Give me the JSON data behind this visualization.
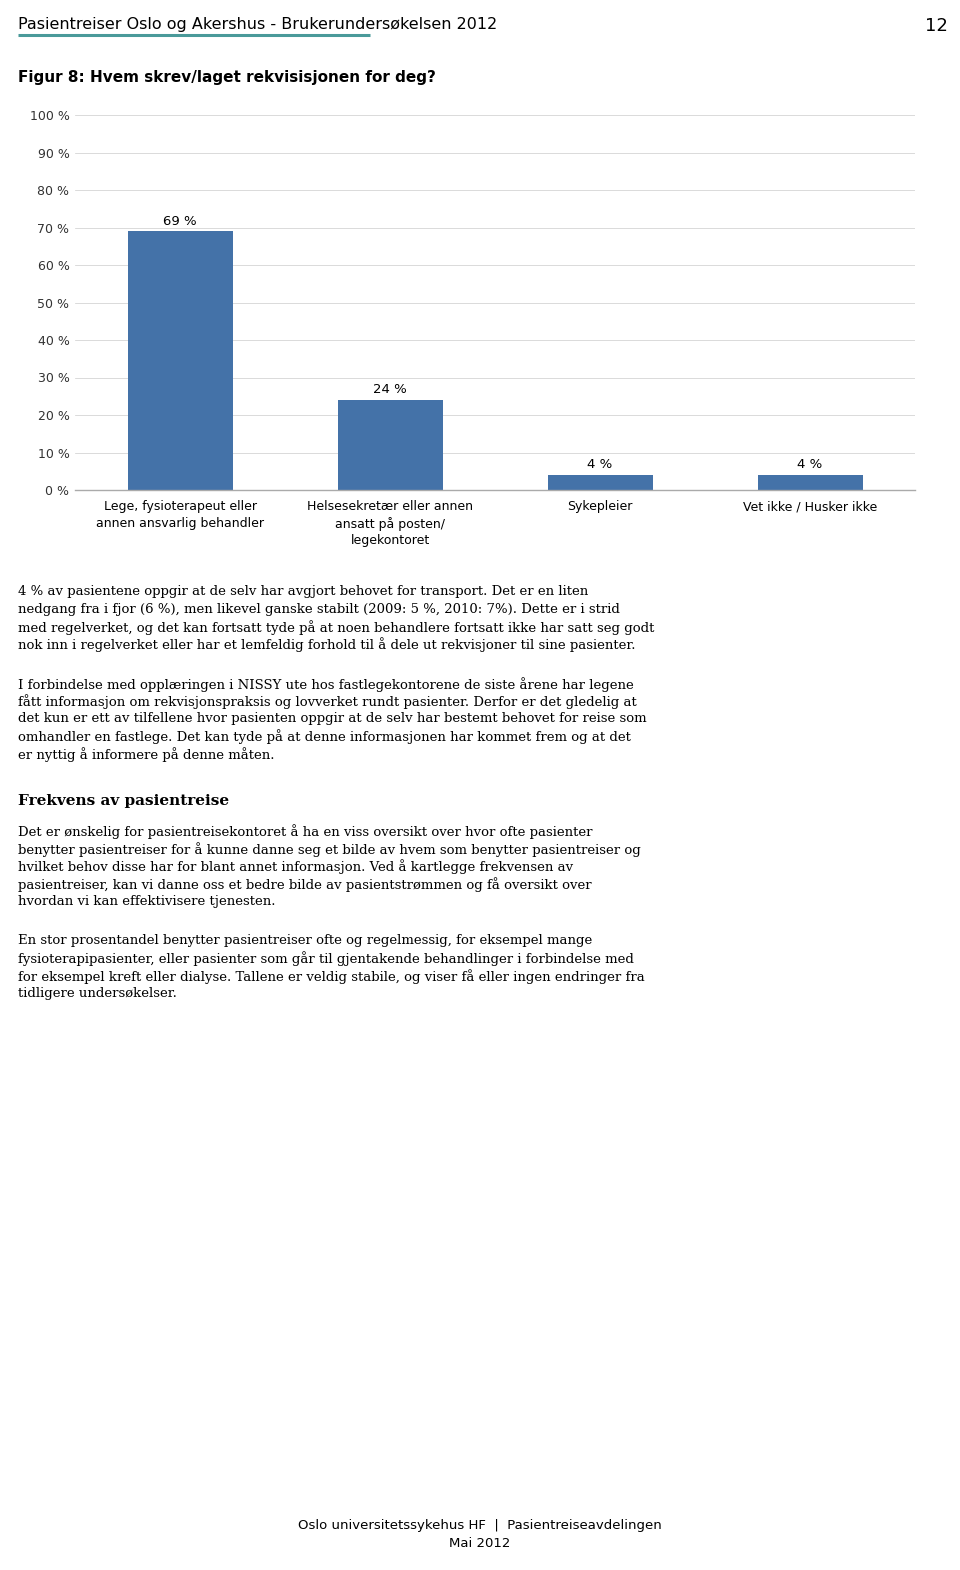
{
  "header_title": "Pasientreiser Oslo og Akershus - Brukerundersøkelsen 2012",
  "page_number": "12",
  "header_line_color": "#4a9a9a",
  "figure_title": "Figur 8: Hvem skrev/laget rekvisisjonen for deg?",
  "categories": [
    "Lege, fysioterapeut eller\nannen ansvarlig behandler",
    "Helsesekretær eller annen\nansatt på posten/\nlegekontoret",
    "Sykepleier",
    "Vet ikke / Husker ikke"
  ],
  "values": [
    69,
    24,
    4,
    4
  ],
  "bar_color": "#4472a8",
  "bar_labels": [
    "69 %",
    "24 %",
    "4 %",
    "4 %"
  ],
  "yticks": [
    0,
    10,
    20,
    30,
    40,
    50,
    60,
    70,
    80,
    90,
    100
  ],
  "ytick_labels": [
    "0 %",
    "10 %",
    "20 %",
    "30 %",
    "40 %",
    "50 %",
    "60 %",
    "70 %",
    "80 %",
    "90 %",
    "100 %"
  ],
  "body_paragraphs": [
    "4 % av pasientene oppgir at de selv har avgjort behovet for transport. Det er en liten\nnedgang fra i fjor (6 %), men likevel ganske stabilt (2009: 5 %, 2010: 7%). Dette er i strid\nmed regelverket, og det kan fortsatt tyde på at noen behandlere fortsatt ikke har satt seg godt\nnok inn i regelverket eller har et lemfeldig forhold til å dele ut rekvisjoner til sine pasienter.",
    "I forbindelse med opplæringen i NISSY ute hos fastlegekontorene de siste årene har legene\nfått informasjon om rekvisjonspraksis og lovverket rundt pasienter. Derfor er det gledelig at\ndet kun er ett av tilfellene hvor pasienten oppgir at de selv har bestemt behovet for reise som\nomhandler en fastlege. Det kan tyde på at denne informasjonen har kommet frem og at det\ner nyttig å informere på denne måten."
  ],
  "section_title": "Frekvens av pasientreise",
  "section_paragraphs": [
    "Det er ønskelig for pasientreisekontoret å ha en viss oversikt over hvor ofte pasienter\nbenytter pasientreiser for å kunne danne seg et bilde av hvem som benytter pasientreiser og\nhvilket behov disse har for blant annet informasjon. Ved å kartlegge frekvensen av\npasientreiser, kan vi danne oss et bedre bilde av pasientstrømmen og få oversikt over\nhvordan vi kan effektivisere tjenesten.",
    "En stor prosentandel benytter pasientreiser ofte og regelmessig, for eksempel mange\nfysioterapipasienter, eller pasienter som går til gjentakende behandlinger i forbindelse med\nfor eksempel kreft eller dialyse. Tallene er veldig stabile, og viser få eller ingen endringer fra\ntidligere undersøkelser."
  ],
  "footer_line1": "Oslo universitetssykehus HF  |  Pasientreiseavdelingen",
  "footer_line2": "Mai 2012",
  "background_color": "#ffffff",
  "text_color": "#000000"
}
